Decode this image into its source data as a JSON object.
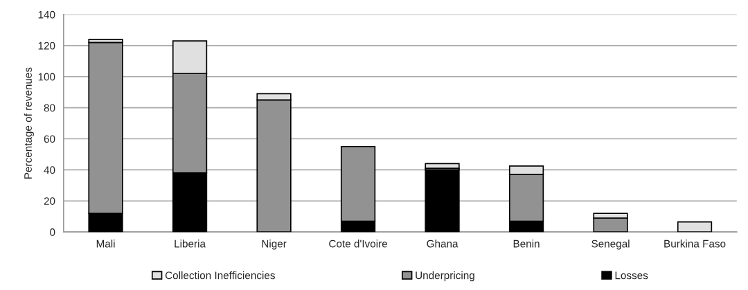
{
  "chart_data": {
    "type": "bar",
    "stacked": true,
    "ylabel": "Percentage of revenues",
    "categories": [
      "Mali",
      "Liberia",
      "Niger",
      "Cote d'Ivoire",
      "Ghana",
      "Benin",
      "Senegal",
      "Burkina Faso"
    ],
    "series": [
      {
        "name": "Losses",
        "color": "#000000",
        "values": [
          12,
          38,
          0,
          7,
          40,
          7,
          null,
          0
        ]
      },
      {
        "name": "Underpricing",
        "color": "#929292",
        "values": [
          110,
          64,
          85,
          48,
          1,
          30,
          9,
          0
        ]
      },
      {
        "name": "Collection Inefficiencies",
        "color": "#e0e0e0",
        "values": [
          2,
          21,
          4,
          0,
          3,
          5.5,
          3,
          6.5
        ]
      }
    ],
    "ylim": [
      0,
      140
    ],
    "yticks": [
      0,
      20,
      40,
      60,
      80,
      100,
      120,
      140
    ],
    "grid": "y",
    "legend": "bottom"
  }
}
